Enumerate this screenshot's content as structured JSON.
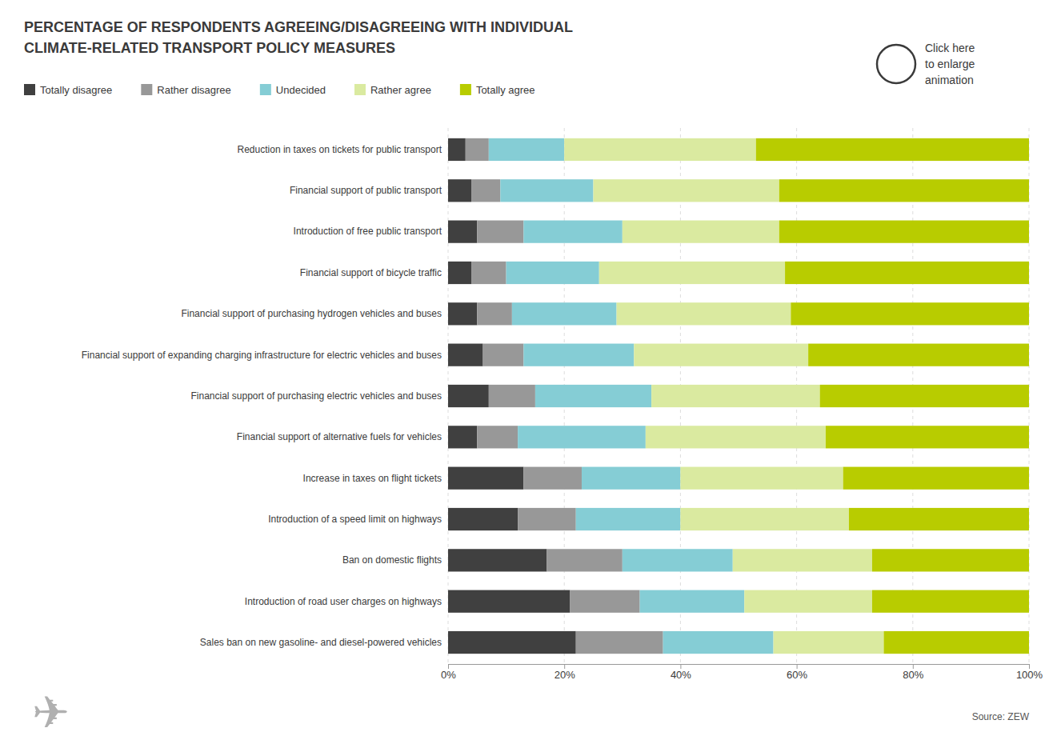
{
  "chart_data": {
    "type": "bar",
    "orientation": "horizontal",
    "stacked": true,
    "title": "PERCENTAGE OF RESPONDENTS AGREEING/DISAGREEING WITH INDIVIDUAL\nCLIMATE-RELATED TRANSPORT POLICY MEASURES",
    "categories": [
      "Reduction in taxes on tickets for public transport",
      "Financial support of public transport",
      "Introduction of free public transport",
      "Financial support of bicycle traffic",
      "Financial support of purchasing hydrogen vehicles and buses",
      "Financial support of expanding charging infrastructure for electric vehicles and buses",
      "Financial support of purchasing electric vehicles and buses",
      "Financial support of alternative fuels for vehicles",
      "Increase in taxes on flight tickets",
      "Introduction of a speed limit on highways",
      "Ban on domestic flights",
      "Introduction of road user charges on highways",
      "Sales ban on new gasoline- and diesel-powered vehicles"
    ],
    "series": [
      {
        "name": "Totally disagree",
        "color": "#404040",
        "values": [
          3,
          4,
          5,
          4,
          5,
          6,
          7,
          5,
          13,
          12,
          17,
          21,
          22
        ]
      },
      {
        "name": "Rather disagree",
        "color": "#989898",
        "values": [
          4,
          5,
          8,
          6,
          6,
          7,
          8,
          7,
          10,
          10,
          13,
          12,
          15
        ]
      },
      {
        "name": "Undecided",
        "color": "#85cdd5",
        "values": [
          13,
          16,
          17,
          16,
          18,
          19,
          20,
          22,
          17,
          18,
          19,
          18,
          19
        ]
      },
      {
        "name": "Rather agree",
        "color": "#daeaa0",
        "values": [
          33,
          32,
          27,
          32,
          30,
          30,
          29,
          31,
          28,
          29,
          24,
          22,
          19
        ]
      },
      {
        "name": "Totally agree",
        "color": "#b8cc00",
        "values": [
          47,
          43,
          43,
          42,
          41,
          38,
          36,
          35,
          32,
          31,
          27,
          27,
          25
        ]
      }
    ],
    "xlim": [
      0,
      100
    ],
    "xticks": [
      {
        "value": 0,
        "label": "0%"
      },
      {
        "value": 20,
        "label": "20%"
      },
      {
        "value": 40,
        "label": "40%"
      },
      {
        "value": 60,
        "label": "60%"
      },
      {
        "value": 80,
        "label": "80%"
      },
      {
        "value": 100,
        "label": "100%"
      }
    ],
    "grid": true,
    "legend": "top",
    "annotations": [
      "Click here\nto enlarge\nanimation",
      "Source: ZEW",
      "✈"
    ]
  }
}
